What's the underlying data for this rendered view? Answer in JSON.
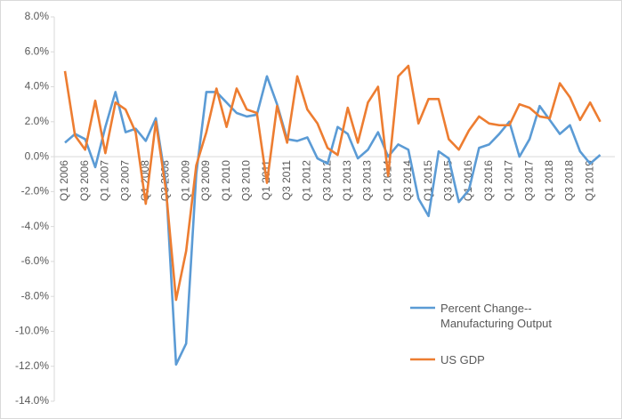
{
  "chart_data": {
    "type": "line",
    "categories": [
      "Q1 2006",
      null,
      "Q3 2006",
      null,
      "Q1 2007",
      null,
      "Q3 2007",
      null,
      "Q1 2008",
      null,
      "Q3 2008",
      null,
      "Q1 2009",
      null,
      "Q3 2009",
      null,
      "Q1 2010",
      null,
      "Q3 2010",
      null,
      "Q1 2011",
      null,
      "Q3 2011",
      null,
      "Q1 2012",
      null,
      "Q3 2012",
      null,
      "Q1 2013",
      null,
      "Q3 2013",
      null,
      "Q1 2014",
      null,
      "Q3 2014",
      null,
      "Q1 2015",
      null,
      "Q3 2015",
      null,
      "Q1 2016",
      null,
      "Q3 2016",
      null,
      "Q1 2017",
      null,
      "Q3 2017",
      null,
      "Q1 2018",
      null,
      "Q3 2018",
      null,
      "Q1 2019",
      null
    ],
    "series": [
      {
        "name": "Percent Change--Manufacturing Output",
        "color": "#5b9bd5",
        "values": [
          0.8,
          1.3,
          1.0,
          -0.6,
          1.7,
          3.7,
          1.4,
          1.6,
          0.9,
          2.2,
          -1.5,
          -11.9,
          -10.7,
          -1.0,
          3.7,
          3.7,
          3.1,
          2.5,
          2.3,
          2.4,
          4.6,
          3.0,
          1.0,
          0.9,
          1.1,
          -0.1,
          -0.4,
          1.7,
          1.3,
          -0.1,
          0.4,
          1.4,
          0.0,
          0.7,
          0.4,
          -2.4,
          -3.4,
          0.3,
          -0.1,
          -2.6,
          -1.9,
          0.5,
          0.7,
          1.3,
          2.0,
          0.0,
          1.0,
          2.9,
          2.1,
          1.3,
          1.8,
          0.3,
          -0.4,
          0.1
        ]
      },
      {
        "name": "US GDP",
        "color": "#ed7d31",
        "values": [
          4.9,
          1.2,
          0.4,
          3.2,
          0.2,
          3.1,
          2.7,
          1.4,
          -2.7,
          2.0,
          -1.9,
          -8.2,
          -5.4,
          -0.5,
          1.4,
          3.9,
          1.7,
          3.9,
          2.7,
          2.5,
          -1.5,
          2.9,
          0.8,
          4.6,
          2.7,
          1.9,
          0.5,
          0.1,
          2.8,
          0.8,
          3.1,
          4.0,
          -1.1,
          4.6,
          5.2,
          1.9,
          3.3,
          3.3,
          1.0,
          0.4,
          1.5,
          2.3,
          1.9,
          1.8,
          1.8,
          3.0,
          2.8,
          2.3,
          2.2,
          4.2,
          3.4,
          2.1,
          3.1,
          2.0
        ]
      }
    ],
    "ylim": [
      -14,
      8
    ],
    "yticks": [
      {
        "value": -14,
        "label": "-14.0%"
      },
      {
        "value": -12,
        "label": "-12.0%"
      },
      {
        "value": -10,
        "label": "-10.0%"
      },
      {
        "value": -8,
        "label": "-8.0%"
      },
      {
        "value": -6,
        "label": "-6.0%"
      },
      {
        "value": -4,
        "label": "-4.0%"
      },
      {
        "value": -2,
        "label": "-2.0%"
      },
      {
        "value": 0,
        "label": "0.0%"
      },
      {
        "value": 2,
        "label": "2.0%"
      },
      {
        "value": 4,
        "label": "4.0%"
      },
      {
        "value": 6,
        "label": "6.0%"
      },
      {
        "value": 8,
        "label": "8.0%"
      }
    ],
    "grid": false
  }
}
